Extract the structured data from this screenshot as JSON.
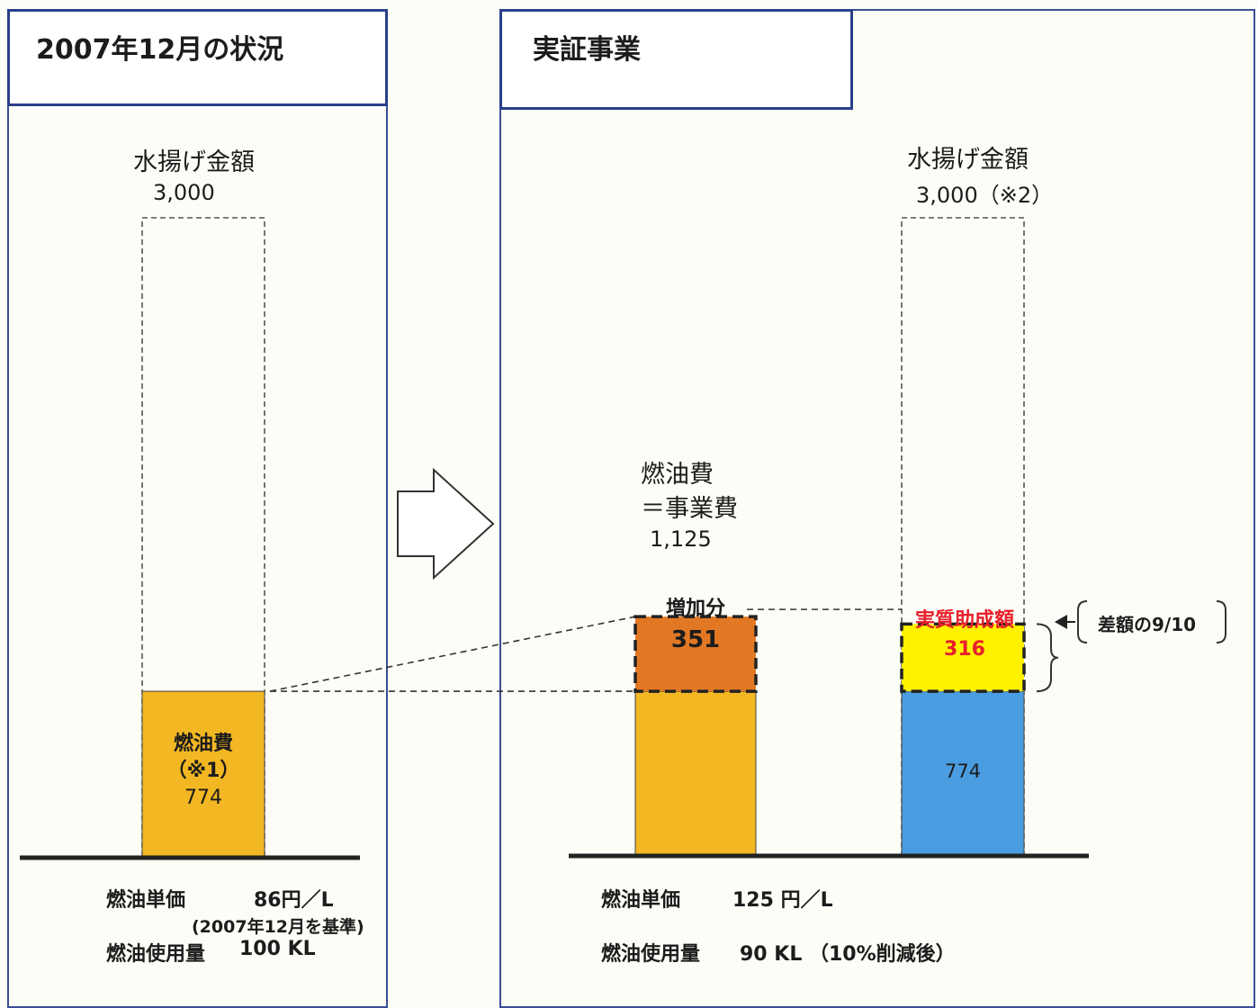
{
  "left": {
    "title": "2007年12月の状況",
    "label": "水揚げ金額",
    "label_value": "3,000",
    "fuel_bar": {
      "line1": "燃油費",
      "line2": "（※1）",
      "value_label": "774"
    },
    "unit_price_label": "燃油単価",
    "unit_price_value": "86円／L",
    "unit_price_note": "(2007年12月を基準)",
    "usage_label": "燃油使用量",
    "usage_value": "100 KL"
  },
  "right": {
    "title": "実証事業",
    "fuel_header": {
      "line1": "燃油費",
      "line2": "＝事業費",
      "value": "1,125"
    },
    "increase": {
      "label": "増加分",
      "value_label": "351"
    },
    "catch_header": {
      "line1": "水揚げ金額",
      "line2": "3,000（※2）"
    },
    "subsidy": {
      "label": "実質助成額",
      "value_label": "316"
    },
    "base_value_label": "774",
    "diff_note": "差額の9/10",
    "unit_price_label": "燃油単価",
    "unit_price_value": "125 円／L",
    "usage_label": "燃油使用量",
    "usage_value": "90 KL （10%削減後）"
  },
  "colors": {
    "fuel": "#f2b722",
    "increase": "#e27824",
    "subsidy": "#fff200",
    "base": "#4a9de0",
    "subsidy_text": "#e8202a",
    "frame": "#2c3f8c"
  },
  "chart_data": [
    {
      "type": "bar",
      "categories": [
        "水揚げ金額"
      ],
      "ylim": [
        0,
        3000
      ],
      "series": [
        {
          "name": "燃油費",
          "values": [
            774
          ]
        },
        {
          "name": "水揚げ金額",
          "values": [
            3000
          ]
        }
      ]
    },
    {
      "type": "bar",
      "categories": [
        "燃油費＝事業費",
        "水揚げ金額"
      ],
      "ylim": [
        0,
        3000
      ],
      "series": [
        {
          "name": "燃油費",
          "values": [
            774,
            0
          ]
        },
        {
          "name": "増加分",
          "values": [
            351,
            0
          ]
        },
        {
          "name": "実質助成額",
          "values": [
            0,
            316
          ]
        },
        {
          "name": "水揚げ金額",
          "values": [
            0,
            3000
          ]
        }
      ]
    }
  ]
}
